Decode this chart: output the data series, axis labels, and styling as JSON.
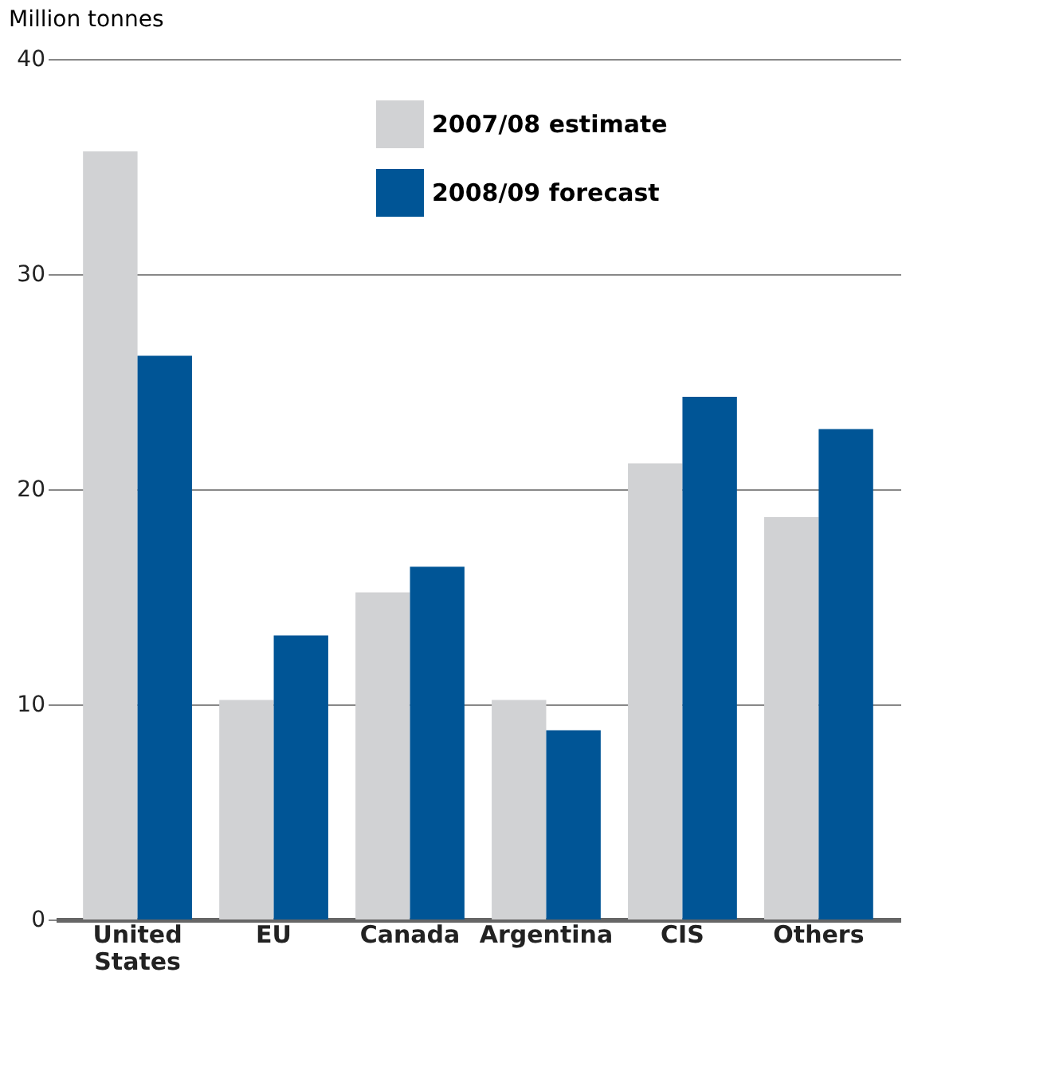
{
  "chart_data": {
    "type": "bar",
    "ylabel": "Million tonnes",
    "categories": [
      "United States",
      "EU",
      "Canada",
      "Argentina",
      "CIS",
      "Others"
    ],
    "series": [
      {
        "name": "2007/08 estimate",
        "color": "#d1d2d4",
        "values": [
          35.7,
          10.2,
          15.2,
          10.2,
          21.2,
          18.7
        ]
      },
      {
        "name": "2008/09 forecast",
        "color": "#005596",
        "values": [
          26.2,
          13.2,
          16.4,
          8.8,
          24.3,
          22.8
        ]
      }
    ],
    "ylim": [
      0,
      40
    ],
    "yticks": [
      0,
      10,
      20,
      30,
      40
    ],
    "grid": "y",
    "legend": "top"
  }
}
